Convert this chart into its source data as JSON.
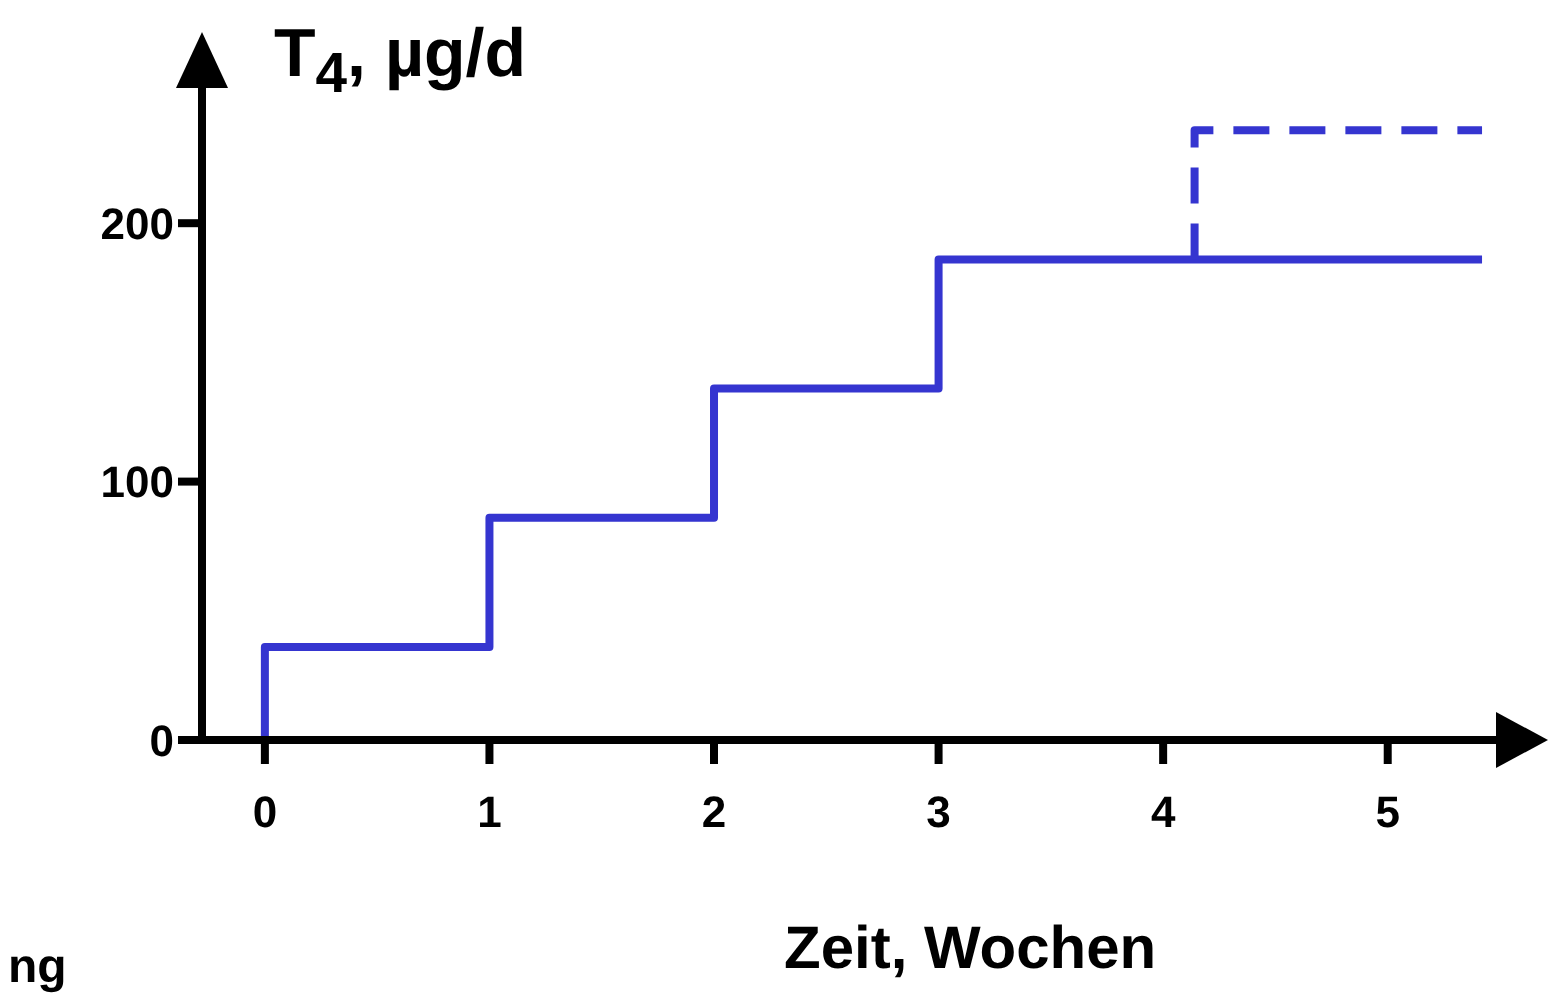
{
  "chart_data": {
    "type": "step",
    "ylabel": "T$_{4}$, µg/d",
    "xlabel": "Zeit, Wochen",
    "annotations": [
      "ng"
    ],
    "xlim": [
      -0.28,
      5.5
    ],
    "xticks": [
      0,
      1,
      2,
      3,
      4,
      5
    ],
    "ylim": [
      0,
      250
    ],
    "yticks": [
      0,
      100,
      200
    ],
    "grid": false,
    "legend": false,
    "marker": "none",
    "series": [
      {
        "color": "#3535d0",
        "line_style": "solid",
        "x": [
          0,
          0,
          1,
          2,
          3,
          5.42
        ],
        "values": [
          0,
          36,
          86,
          136,
          186,
          186
        ]
      },
      {
        "color": "#3535d0",
        "line_style": "dashed",
        "x": [
          4.14,
          4.14,
          5.42
        ],
        "values": [
          186,
          236,
          236
        ]
      }
    ]
  }
}
